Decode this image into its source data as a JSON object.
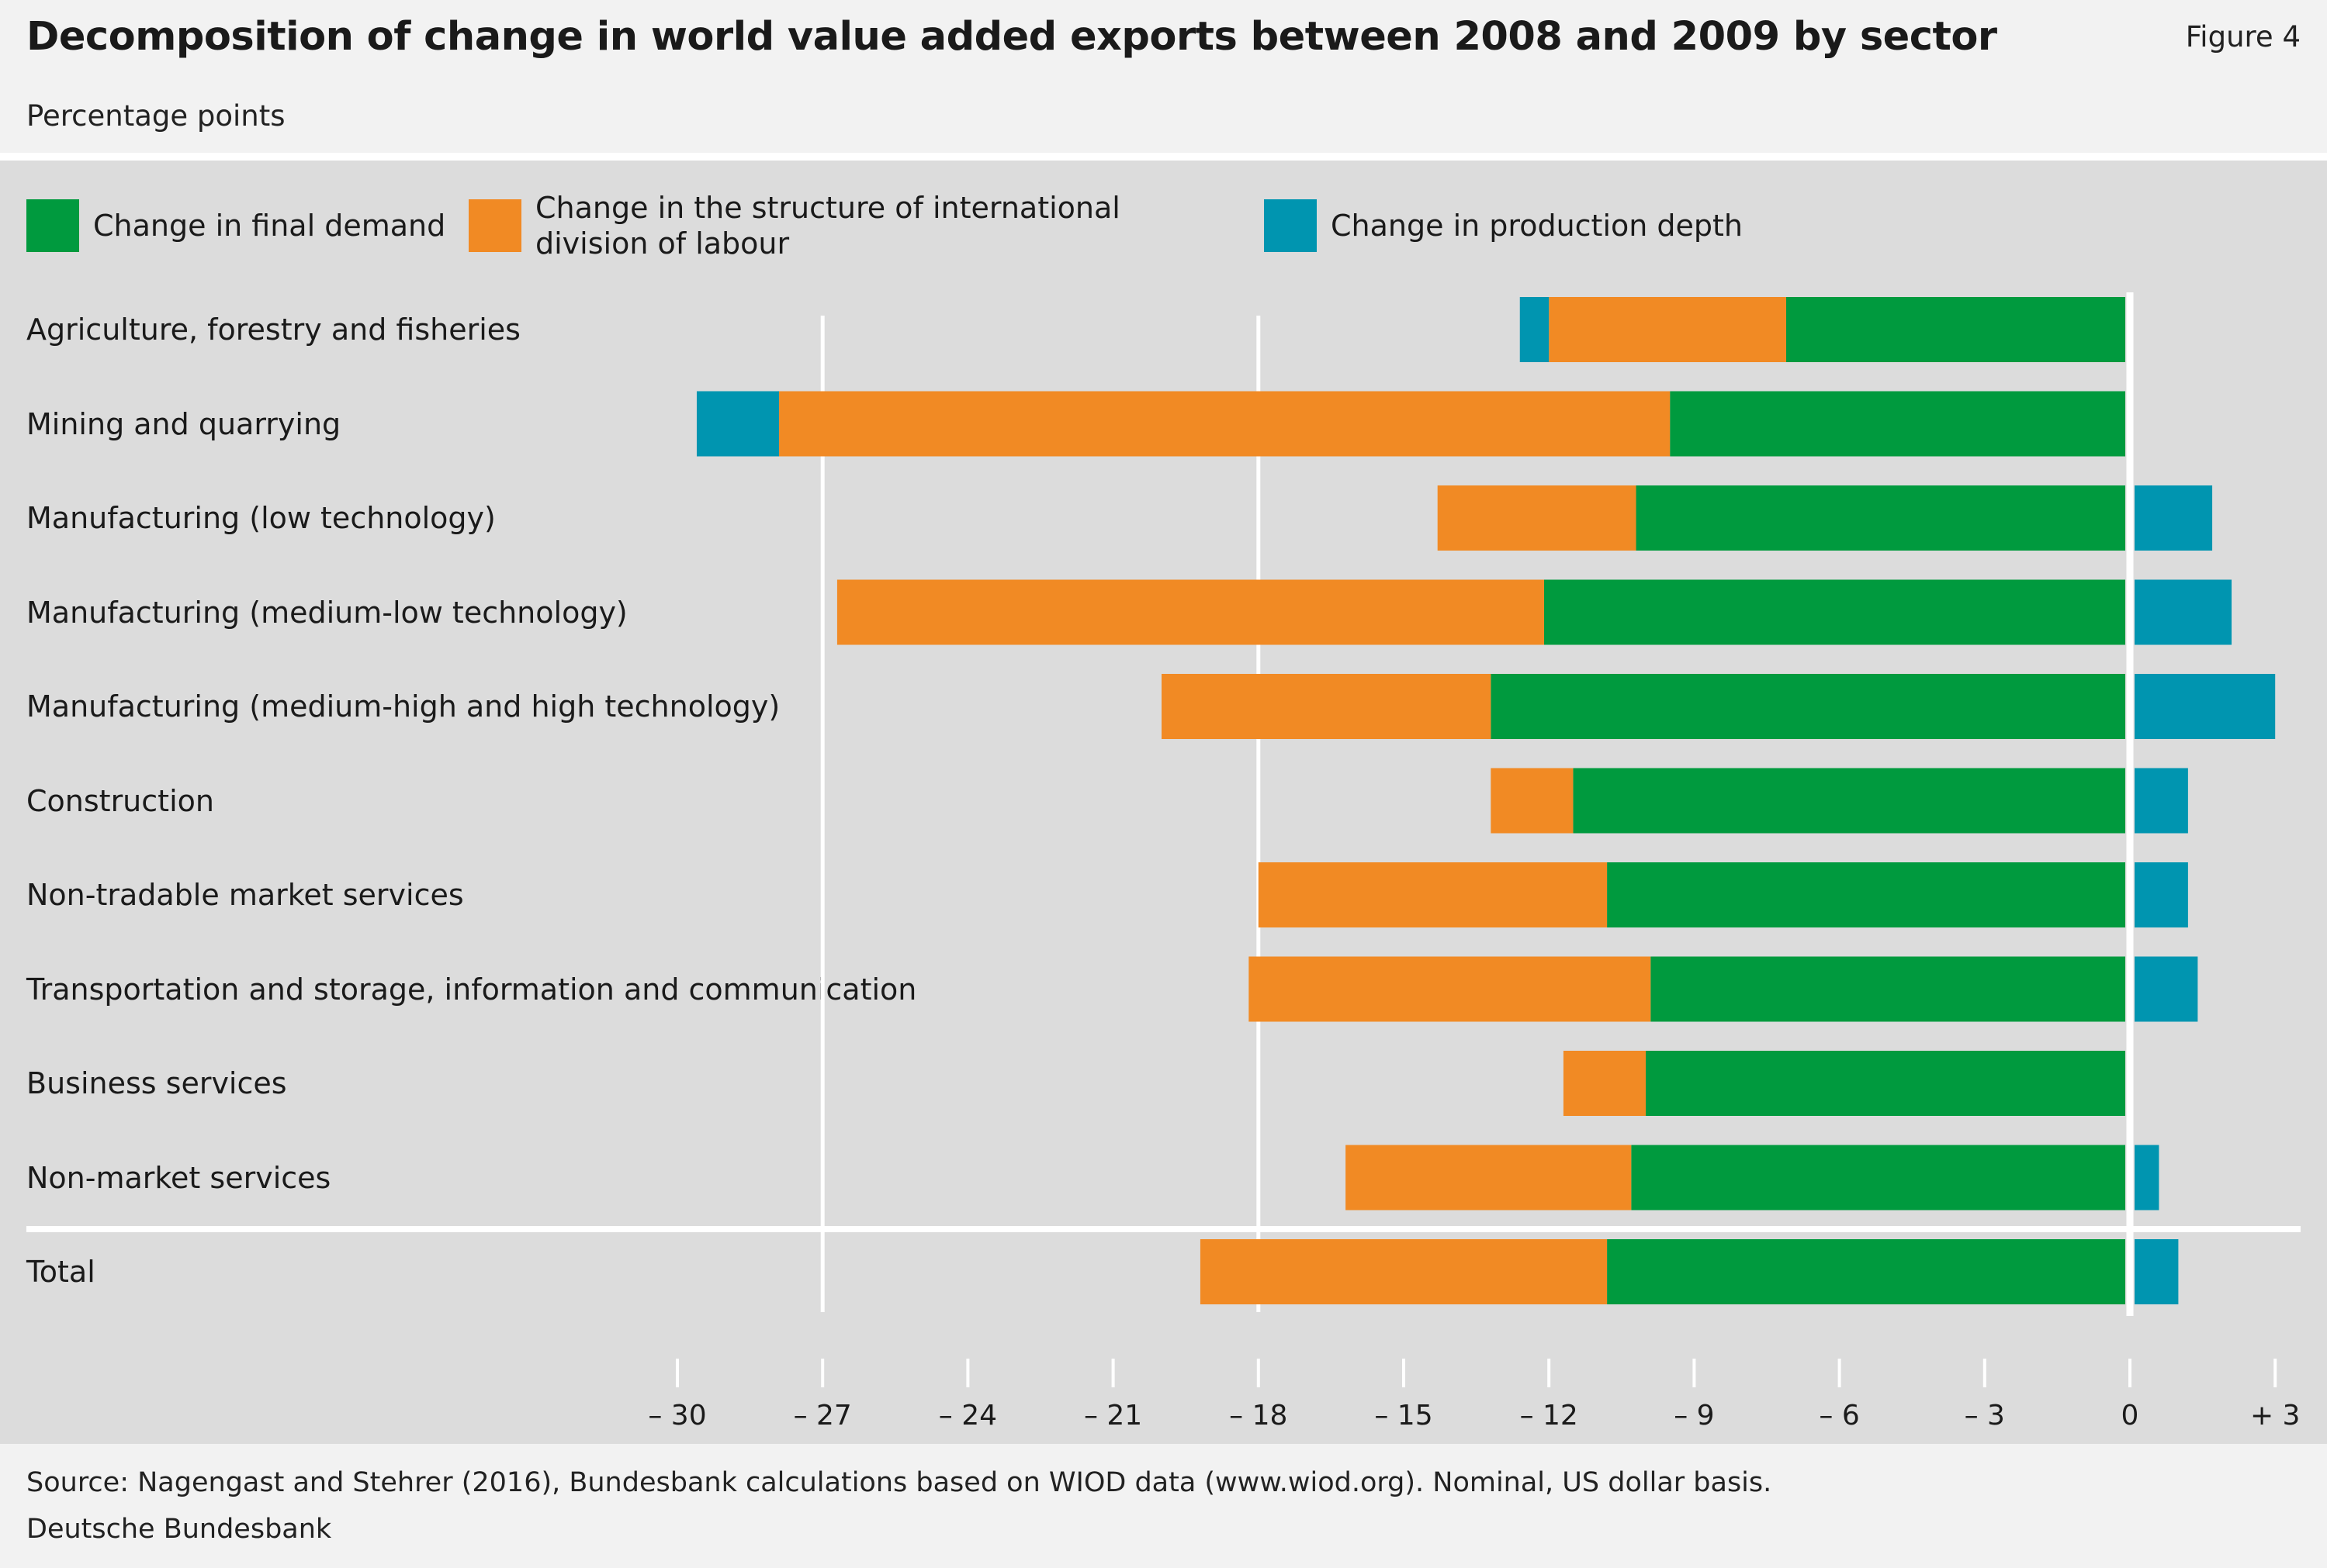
{
  "header": {
    "title": "Decomposition of change in world value added exports between 2008 and 2009 by sector",
    "figure_label": "Figure 4",
    "subtitle": "Percentage points"
  },
  "footer": {
    "source": "Source: Nagengast and Stehrer (2016), Bundesbank calculations based on WIOD data (www.wiod.org). Nominal, US dollar basis.",
    "publisher": "Deutsche Bundesbank"
  },
  "colors": {
    "final_demand": "#009a3e",
    "structure": "#f18a24",
    "production_depth": "#0095b0",
    "gridline": "#ffffff",
    "panel": "#dcdcdc"
  },
  "chart_data": {
    "type": "bar",
    "orientation": "horizontal",
    "stacked": true,
    "title": "Decomposition of change in world value added exports between 2008 and 2009 by sector",
    "xlabel": "",
    "ylabel": "",
    "unit": "Percentage points",
    "xlim": [
      -30,
      3
    ],
    "xticks": [
      -30,
      -27,
      -24,
      -21,
      -18,
      -15,
      -12,
      -9,
      -6,
      -3,
      0,
      3
    ],
    "xtick_labels": [
      "– 30",
      "– 27",
      "– 24",
      "– 21",
      "– 18",
      "– 15",
      "– 12",
      "– 9",
      "– 6",
      "– 3",
      "0",
      "+ 3"
    ],
    "gridlines": [
      -27,
      -18
    ],
    "legend_position": "top",
    "categories": [
      "Agriculture, forestry and fisheries",
      "Mining and quarrying",
      "Manufacturing (low technology)",
      "Manufacturing (medium-low technology)",
      "Manufacturing (medium-high and high technology)",
      "Construction",
      "Non-tradable market services",
      "Transportation and storage, information and communication",
      "Business services",
      "Non-market services",
      "Total"
    ],
    "separator_before": "Total",
    "series": [
      {
        "name": "Change in final demand",
        "key": "final_demand",
        "values": [
          -7.1,
          -9.5,
          -10.2,
          -12.1,
          -13.2,
          -11.5,
          -10.8,
          -9.9,
          -10.0,
          -10.3,
          -10.8
        ]
      },
      {
        "name": "Change in the structure of international division of labour",
        "key": "structure",
        "values": [
          -4.9,
          -18.4,
          -4.1,
          -14.6,
          -6.8,
          -1.7,
          -7.2,
          -8.3,
          -1.7,
          -5.9,
          -8.4
        ]
      },
      {
        "name": "Change in production depth",
        "key": "production_depth",
        "values": [
          -0.6,
          -1.7,
          1.7,
          2.1,
          3.0,
          1.2,
          1.2,
          1.4,
          0.0,
          0.6,
          1.0
        ]
      }
    ]
  }
}
